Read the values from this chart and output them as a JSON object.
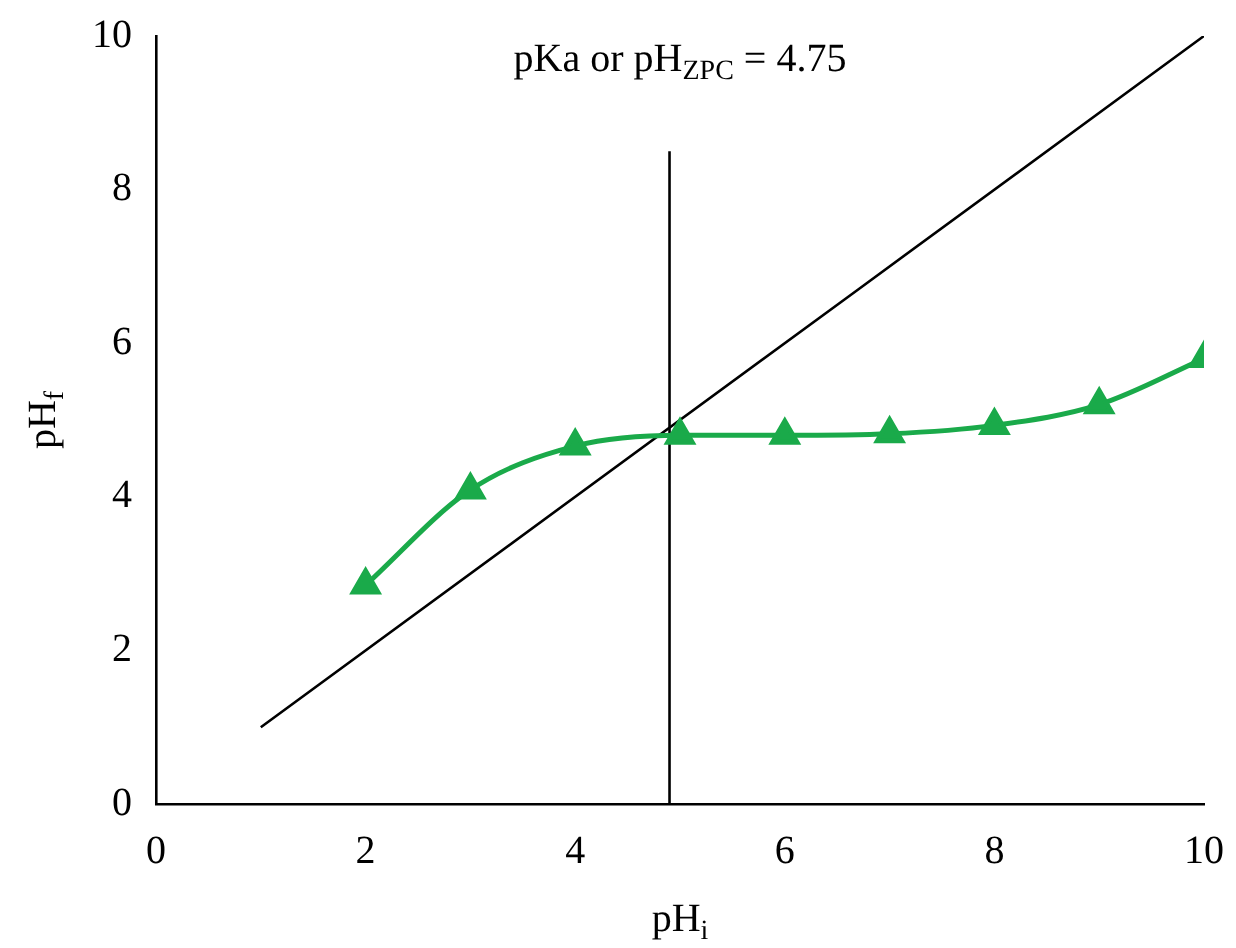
{
  "chart_data": {
    "type": "line",
    "xlabel": "pH$_{i}$",
    "ylabel": "pH$_{f}$",
    "annotations": [
      "pKa or pH$_{ZPC}$ = 4.75"
    ],
    "xlim": [
      0,
      10
    ],
    "xticks": [
      0,
      2,
      4,
      6,
      8,
      10
    ],
    "ylim": [
      0,
      10
    ],
    "yticks": [
      0,
      2,
      4,
      6,
      8,
      10
    ],
    "grid": false,
    "legend": false,
    "series": [
      {
        "color": "#1aaa4a",
        "marker": "triangle",
        "x": [
          2,
          3,
          4,
          5,
          6,
          7,
          8,
          9,
          10
        ],
        "values": [
          2.85,
          4.09,
          4.66,
          4.8,
          4.8,
          4.82,
          4.93,
          5.2,
          5.8
        ]
      },
      {
        "color": "#000000",
        "marker": "none",
        "x": [
          1,
          10
        ],
        "values": [
          1,
          10
        ]
      },
      {
        "color": "#000000",
        "marker": "none",
        "x": [
          4.9,
          4.9
        ],
        "values": [
          0,
          8.5
        ]
      }
    ]
  }
}
